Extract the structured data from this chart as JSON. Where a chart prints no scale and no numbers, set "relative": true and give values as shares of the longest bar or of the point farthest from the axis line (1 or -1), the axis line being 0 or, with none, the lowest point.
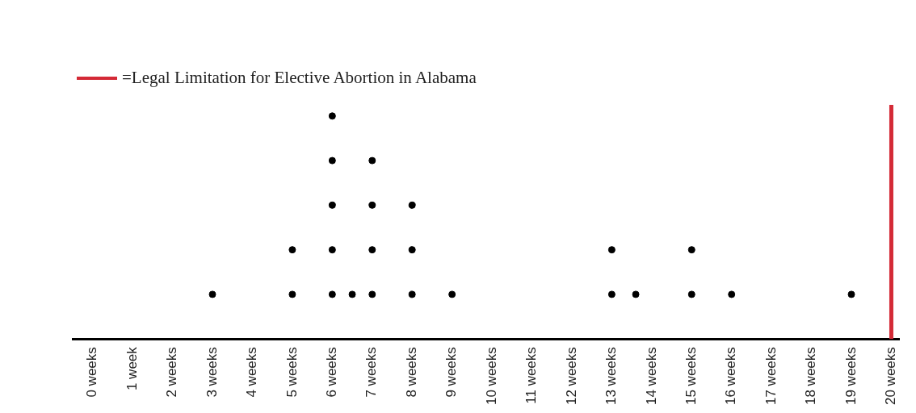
{
  "chart_data": {
    "type": "scatter",
    "relative": true,
    "color": "#000000",
    "marker": "circle",
    "legend": "top left",
    "grid": false,
    "x": [
      3,
      5,
      5,
      6,
      6,
      6,
      6,
      6,
      6.5,
      7,
      7,
      7,
      7,
      8,
      8,
      8,
      9,
      13,
      13,
      13.6,
      15,
      15,
      16,
      19
    ],
    "values": [
      0.2,
      0.2,
      0.4,
      0.2,
      0.4,
      0.6,
      0.8,
      1,
      0.2,
      0.2,
      0.4,
      0.6,
      0.8,
      0.2,
      0.4,
      0.6,
      0.2,
      0.2,
      0.4,
      0.2,
      0.2,
      0.4,
      0.2,
      0.2
    ],
    "xlim": [
      -0.5,
      20.2
    ],
    "xticks": [
      {
        "value": 0,
        "label": "0 weeks"
      },
      {
        "value": 1,
        "label": "1 week"
      },
      {
        "value": 2,
        "label": "2 weeks"
      },
      {
        "value": 3,
        "label": "3 weeks"
      },
      {
        "value": 4,
        "label": "4 weeks"
      },
      {
        "value": 5,
        "label": "5 weeks"
      },
      {
        "value": 6,
        "label": "6 weeks"
      },
      {
        "value": 7,
        "label": "7 weeks"
      },
      {
        "value": 8,
        "label": "8 weeks"
      },
      {
        "value": 9,
        "label": "9 weeks"
      },
      {
        "value": 10,
        "label": "10 weeks"
      },
      {
        "value": 11,
        "label": "11 weeks"
      },
      {
        "value": 12,
        "label": "12 weeks"
      },
      {
        "value": 13,
        "label": "13 weeks"
      },
      {
        "value": 14,
        "label": "14 weeks"
      },
      {
        "value": 15,
        "label": "15 weeks"
      },
      {
        "value": 16,
        "label": "16 weeks"
      },
      {
        "value": 17,
        "label": "17 weeks"
      },
      {
        "value": 18,
        "label": "18 weeks"
      },
      {
        "value": 19,
        "label": "19 weeks"
      },
      {
        "value": 20,
        "label": "20 weeks"
      }
    ],
    "ref_lines": [
      {
        "axis": "x",
        "value": 20,
        "label": "=Legal Limitation for Elective Abortion in Alabama",
        "color": "#d42a36"
      }
    ]
  }
}
